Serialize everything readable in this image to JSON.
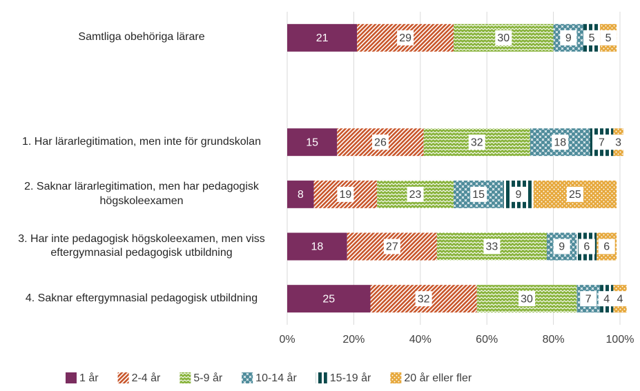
{
  "chart_data": {
    "type": "stacked-barh",
    "categories": [
      "Samtliga obehöriga lärare",
      null,
      "1. Har lärarlegitimation, men inte för grundskolan",
      "2. Saknar lärarlegitimation, men har pedagogisk högskoleexamen",
      "3. Har inte pedagogisk högskoleexamen, men viss eftergymnasial pedagogisk utbildning",
      "4. Saknar eftergymnasial pedagogisk utbildning"
    ],
    "series": [
      {
        "name": "1 år",
        "color": "#7b2d5f",
        "pattern": "solid",
        "values": [
          21,
          null,
          15,
          8,
          18,
          25
        ]
      },
      {
        "name": "2-4 år",
        "color": "#c9572c",
        "pattern": "diagonal",
        "values": [
          29,
          null,
          26,
          19,
          27,
          32
        ]
      },
      {
        "name": "5-9 år",
        "color": "#8ab43e",
        "pattern": "wave",
        "values": [
          30,
          null,
          32,
          23,
          33,
          30
        ]
      },
      {
        "name": "10-14 år",
        "color": "#4f8c9b",
        "pattern": "cross",
        "values": [
          9,
          null,
          18,
          15,
          9,
          7
        ]
      },
      {
        "name": "15-19 år",
        "color": "#0c4a4c",
        "pattern": "vertical",
        "values": [
          5,
          null,
          7,
          9,
          6,
          4
        ]
      },
      {
        "name": "20 år eller fler",
        "color": "#e6a83c",
        "pattern": "dots",
        "values": [
          5,
          null,
          3,
          25,
          6,
          4
        ]
      }
    ],
    "xlim": [
      0,
      100
    ],
    "xticks": [
      {
        "value": 0,
        "label": "0%"
      },
      {
        "value": 20,
        "label": "20%"
      },
      {
        "value": 40,
        "label": "40%"
      },
      {
        "value": 60,
        "label": "60%"
      },
      {
        "value": 80,
        "label": "80%"
      },
      {
        "value": 100,
        "label": "100%"
      }
    ],
    "grid": true,
    "legend": "bottom"
  }
}
